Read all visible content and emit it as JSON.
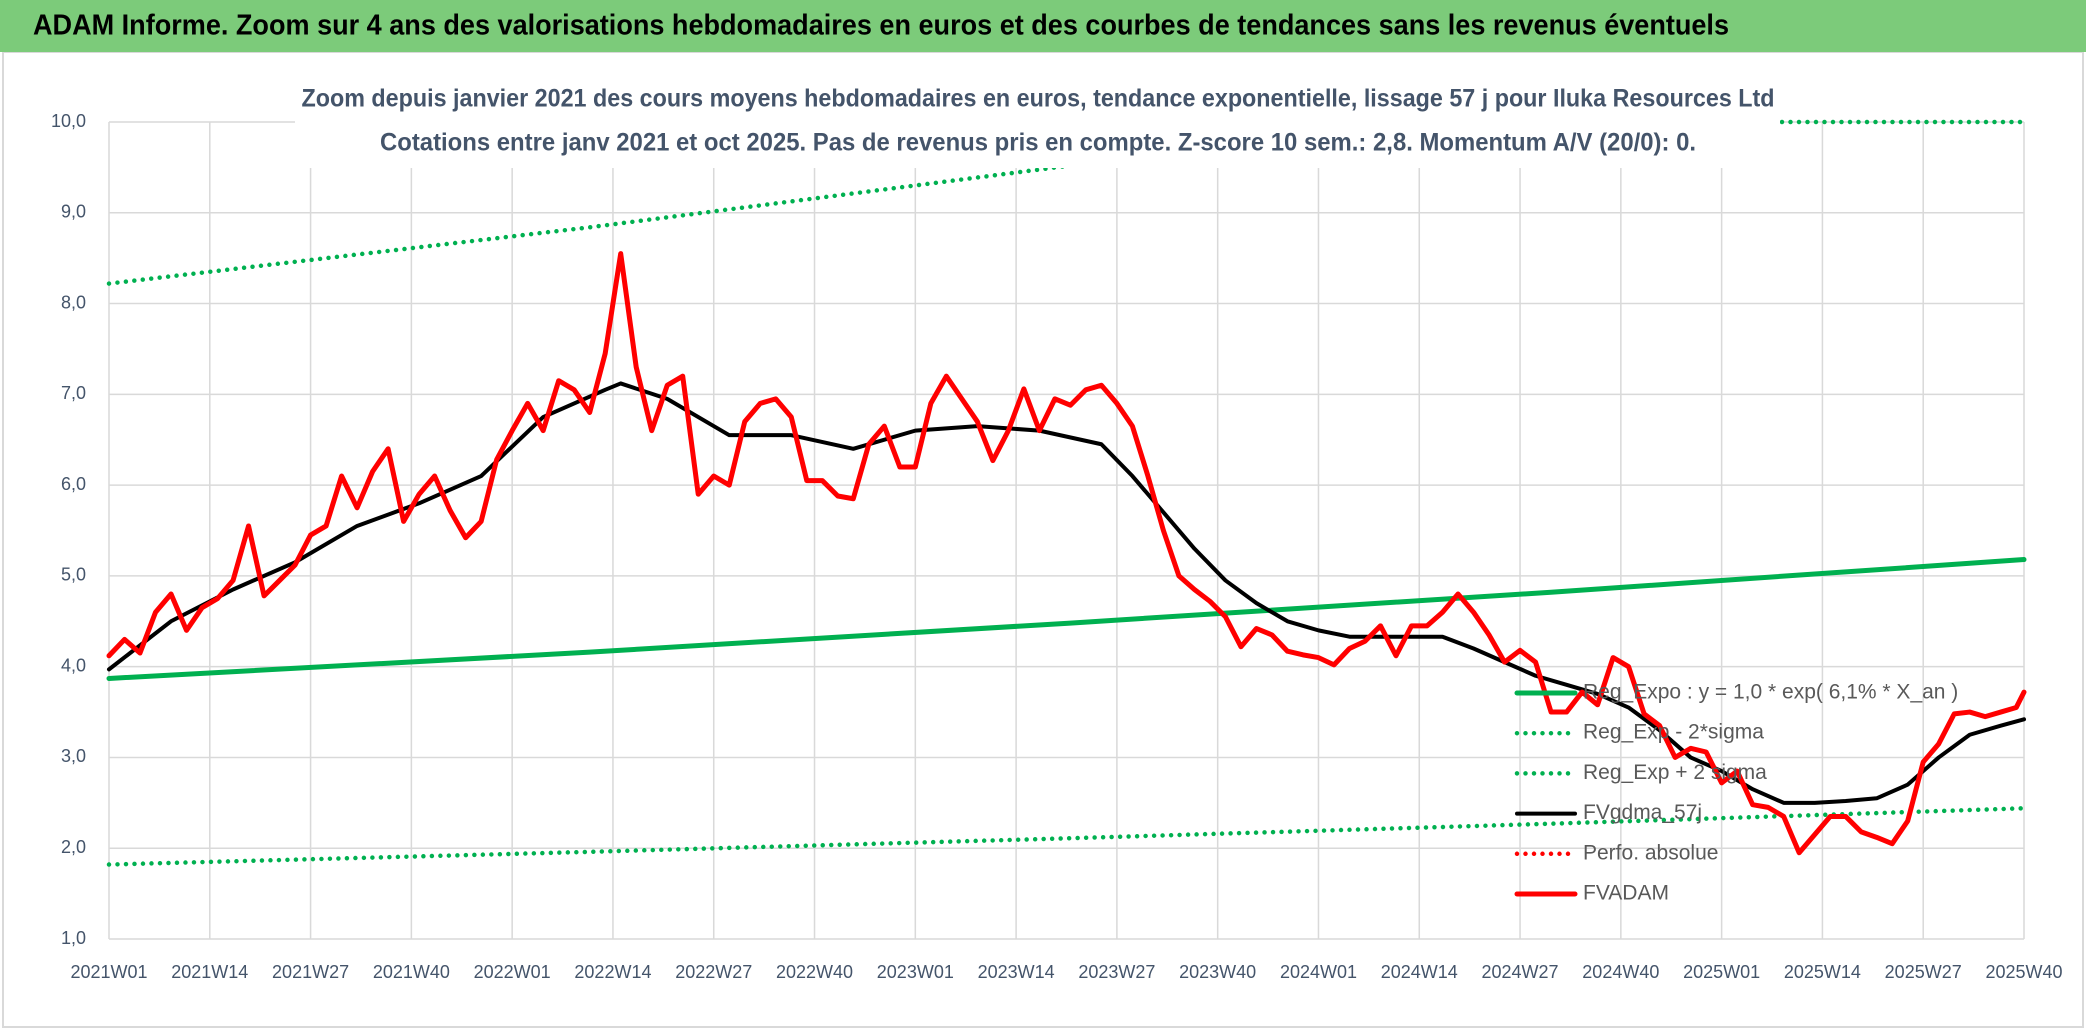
{
  "chart_data": {
    "type": "line",
    "title": "ADAM Informe. Zoom sur 4 ans des valorisations hebdomadaires en euros et des courbes de tendances sans les revenus éventuels",
    "subtitle": [
      "Zoom depuis janvier 2021 des cours moyens hebdomadaires en euros, tendance exponentielle, lissage 57 j pour Iluka Resources Ltd",
      "Cotations entre janv 2021 et oct 2025. Pas de revenus pris en compte. Z-score 10 sem.: 2,8. Momentum A/V (20/0): 0."
    ],
    "xlim": [
      0,
      247
    ],
    "xticks": [
      {
        "value": 0,
        "label": "2021W01"
      },
      {
        "value": 13,
        "label": "2021W14"
      },
      {
        "value": 26,
        "label": "2021W27"
      },
      {
        "value": 39,
        "label": "2021W40"
      },
      {
        "value": 52,
        "label": "2022W01"
      },
      {
        "value": 65,
        "label": "2022W14"
      },
      {
        "value": 78,
        "label": "2022W27"
      },
      {
        "value": 91,
        "label": "2022W40"
      },
      {
        "value": 104,
        "label": "2023W01"
      },
      {
        "value": 117,
        "label": "2023W14"
      },
      {
        "value": 130,
        "label": "2023W27"
      },
      {
        "value": 143,
        "label": "2023W40"
      },
      {
        "value": 156,
        "label": "2024W01"
      },
      {
        "value": 169,
        "label": "2024W14"
      },
      {
        "value": 182,
        "label": "2024W27"
      },
      {
        "value": 195,
        "label": "2024W40"
      },
      {
        "value": 208,
        "label": "2025W01"
      },
      {
        "value": 221,
        "label": "2025W14"
      },
      {
        "value": 234,
        "label": "2025W27"
      },
      {
        "value": 247,
        "label": "2025W40"
      }
    ],
    "ylim": [
      1,
      10
    ],
    "yticks": [
      {
        "value": 1,
        "label": "1,0"
      },
      {
        "value": 2,
        "label": "2,0"
      },
      {
        "value": 3,
        "label": "3,0"
      },
      {
        "value": 4,
        "label": "4,0"
      },
      {
        "value": 5,
        "label": "5,0"
      },
      {
        "value": 6,
        "label": "6,0"
      },
      {
        "value": 7,
        "label": "7,0"
      },
      {
        "value": 8,
        "label": "8,0"
      },
      {
        "value": 9,
        "label": "9,0"
      },
      {
        "value": 10,
        "label": "10,0"
      }
    ],
    "grid": true,
    "legend": "right",
    "series": [
      {
        "name": "Reg_Expo : y = 1,0 * exp( 6,1% *  X_an )",
        "color": "#00b050",
        "style": "solid",
        "x": [
          0,
          62,
          124,
          186,
          247
        ],
        "values": [
          3.87,
          4.16,
          4.48,
          4.82,
          5.18
        ]
      },
      {
        "name": "Reg_Exp - 2*sigma",
        "color": "#00b050",
        "style": "dotted",
        "x": [
          0,
          62,
          124,
          186,
          247
        ],
        "values": [
          1.82,
          1.96,
          2.11,
          2.27,
          2.44
        ]
      },
      {
        "name": "Reg_Exp + 2 sigma",
        "color": "#00b050",
        "style": "dotted",
        "x": [
          0,
          62,
          124,
          168,
          247
        ],
        "values": [
          8.22,
          8.84,
          9.52,
          10,
          10
        ]
      },
      {
        "name": "FVgdma_57j",
        "color": "#000000",
        "style": "solid",
        "x": [
          0,
          8,
          16,
          24,
          32,
          40,
          48,
          56,
          64,
          66,
          72,
          80,
          88,
          96,
          104,
          112,
          120,
          128,
          132,
          136,
          140,
          144,
          148,
          152,
          156,
          160,
          168,
          172,
          176,
          180,
          184,
          188,
          192,
          196,
          200,
          204,
          208,
          212,
          216,
          220,
          224,
          228,
          232,
          236,
          240,
          244,
          247
        ],
        "values": [
          3.97,
          4.5,
          4.85,
          5.15,
          5.55,
          5.8,
          6.1,
          6.75,
          7.05,
          7.12,
          6.95,
          6.55,
          6.55,
          6.4,
          6.6,
          6.65,
          6.6,
          6.45,
          6.1,
          5.7,
          5.3,
          4.95,
          4.7,
          4.5,
          4.4,
          4.33,
          4.33,
          4.33,
          4.2,
          4.05,
          3.9,
          3.8,
          3.7,
          3.55,
          3.3,
          3.0,
          2.85,
          2.65,
          2.5,
          2.5,
          2.52,
          2.55,
          2.7,
          3.0,
          3.25,
          3.35,
          3.42
        ]
      },
      {
        "name": "Perfo. absolue",
        "color": "#ff0000",
        "style": "dotted",
        "x": [],
        "values": []
      },
      {
        "name": "FVADAM",
        "color": "#ff0000",
        "style": "solid",
        "x": [
          0,
          2,
          4,
          6,
          8,
          10,
          12,
          14,
          16,
          18,
          20,
          22,
          24,
          26,
          28,
          30,
          32,
          34,
          36,
          38,
          40,
          42,
          44,
          46,
          48,
          50,
          52,
          54,
          56,
          58,
          60,
          62,
          64,
          66,
          68,
          70,
          72,
          74,
          76,
          78,
          80,
          82,
          84,
          86,
          88,
          90,
          92,
          94,
          96,
          98,
          100,
          102,
          104,
          106,
          108,
          110,
          112,
          114,
          116,
          118,
          120,
          122,
          124,
          126,
          128,
          130,
          132,
          134,
          136,
          138,
          140,
          142,
          144,
          146,
          148,
          150,
          152,
          154,
          156,
          158,
          160,
          162,
          164,
          166,
          168,
          170,
          172,
          174,
          176,
          178,
          180,
          182,
          184,
          186,
          188,
          190,
          192,
          194,
          196,
          198,
          200,
          202,
          204,
          206,
          208,
          210,
          212,
          214,
          216,
          218,
          220,
          222,
          224,
          226,
          228,
          230,
          232,
          234,
          236,
          238,
          240,
          242,
          244,
          246,
          247
        ],
        "values": [
          4.12,
          4.3,
          4.15,
          4.6,
          4.8,
          4.4,
          4.65,
          4.75,
          4.95,
          5.55,
          4.78,
          4.95,
          5.12,
          5.45,
          5.55,
          6.1,
          5.75,
          6.15,
          6.4,
          5.6,
          5.9,
          6.1,
          5.72,
          5.42,
          5.6,
          6.28,
          6.6,
          6.9,
          6.6,
          7.15,
          7.05,
          6.8,
          7.45,
          8.55,
          7.3,
          6.6,
          7.1,
          7.2,
          5.9,
          6.1,
          6.0,
          6.7,
          6.9,
          6.95,
          6.75,
          6.05,
          6.05,
          5.88,
          5.85,
          6.45,
          6.65,
          6.2,
          6.2,
          6.9,
          7.2,
          6.95,
          6.7,
          6.27,
          6.6,
          7.06,
          6.6,
          6.95,
          6.88,
          7.05,
          7.1,
          6.9,
          6.65,
          6.1,
          5.5,
          5.0,
          4.85,
          4.72,
          4.55,
          4.22,
          4.42,
          4.35,
          4.17,
          4.13,
          4.1,
          4.02,
          4.2,
          4.28,
          4.45,
          4.12,
          4.45,
          4.45,
          4.6,
          4.8,
          4.6,
          4.35,
          4.05,
          4.18,
          4.05,
          3.5,
          3.5,
          3.72,
          3.58,
          4.1,
          4.0,
          3.48,
          3.35,
          3.0,
          3.1,
          3.06,
          2.72,
          2.85,
          2.48,
          2.45,
          2.35,
          1.95,
          2.15,
          2.35,
          2.35,
          2.18,
          2.12,
          2.05,
          2.3,
          2.95,
          3.15,
          3.48,
          3.5,
          3.45,
          3.5,
          3.55,
          3.72
        ]
      }
    ]
  }
}
